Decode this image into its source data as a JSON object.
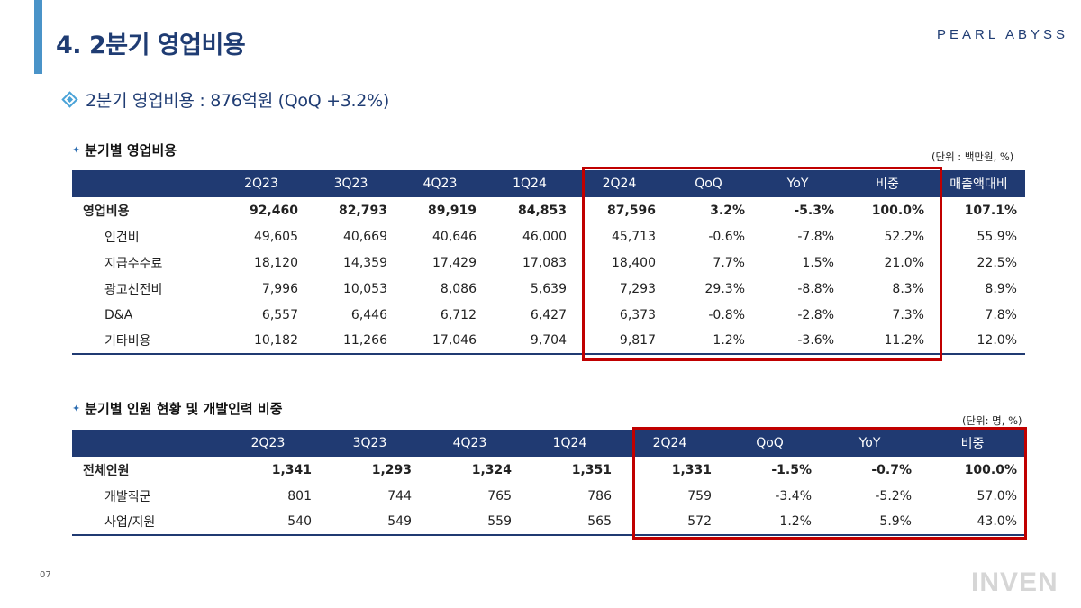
{
  "page": {
    "title": "4. 2분기 영업비용",
    "logo_text": "PEARL ABYSS",
    "summary": "2분기 영업비용 : 876억원 (QoQ +3.2%)",
    "page_number": "07",
    "watermark": "INVEN"
  },
  "opex": {
    "heading": "분기별 영업비용",
    "unit": "(단위 : 백만원, %)",
    "headers": [
      "",
      "2Q23",
      "3Q23",
      "4Q23",
      "1Q24",
      "2Q24",
      "QoQ",
      "YoY",
      "비중",
      "매출액대비"
    ],
    "rows": [
      {
        "label": "영업비용",
        "total": true,
        "values": [
          "92,460",
          "82,793",
          "89,919",
          "84,853",
          "87,596",
          "3.2%",
          "-5.3%",
          "100.0%",
          "107.1%"
        ]
      },
      {
        "label": "인건비",
        "total": false,
        "values": [
          "49,605",
          "40,669",
          "40,646",
          "46,000",
          "45,713",
          "-0.6%",
          "-7.8%",
          "52.2%",
          "55.9%"
        ]
      },
      {
        "label": "지급수수료",
        "total": false,
        "values": [
          "18,120",
          "14,359",
          "17,429",
          "17,083",
          "18,400",
          "7.7%",
          "1.5%",
          "21.0%",
          "22.5%"
        ]
      },
      {
        "label": "광고선전비",
        "total": false,
        "values": [
          "7,996",
          "10,053",
          "8,086",
          "5,639",
          "7,293",
          "29.3%",
          "-8.8%",
          "8.3%",
          "8.9%"
        ]
      },
      {
        "label": "D&A",
        "total": false,
        "values": [
          "6,557",
          "6,446",
          "6,712",
          "6,427",
          "6,373",
          "-0.8%",
          "-2.8%",
          "7.3%",
          "7.8%"
        ]
      },
      {
        "label": "기타비용",
        "total": false,
        "values": [
          "10,182",
          "11,266",
          "17,046",
          "9,704",
          "9,817",
          "1.2%",
          "-3.6%",
          "11.2%",
          "12.0%"
        ]
      }
    ]
  },
  "headcount": {
    "heading": "분기별 인원 현황 및 개발인력 비중",
    "unit": "(단위: 명, %)",
    "headers": [
      "",
      "2Q23",
      "3Q23",
      "4Q23",
      "1Q24",
      "2Q24",
      "QoQ",
      "YoY",
      "비중"
    ],
    "rows": [
      {
        "label": "전체인원",
        "total": true,
        "values": [
          "1,341",
          "1,293",
          "1,324",
          "1,351",
          "1,331",
          "-1.5%",
          "-0.7%",
          "100.0%"
        ]
      },
      {
        "label": "개발직군",
        "total": false,
        "values": [
          "801",
          "744",
          "765",
          "786",
          "759",
          "-3.4%",
          "-5.2%",
          "57.0%"
        ]
      },
      {
        "label": "사업/지원",
        "total": false,
        "values": [
          "540",
          "549",
          "559",
          "565",
          "572",
          "1.2%",
          "5.9%",
          "43.0%"
        ]
      }
    ]
  },
  "colors": {
    "title": "#1f3c73",
    "header_bg": "#203a72",
    "accent": "#4a93c8",
    "highlight": "#c00000"
  }
}
